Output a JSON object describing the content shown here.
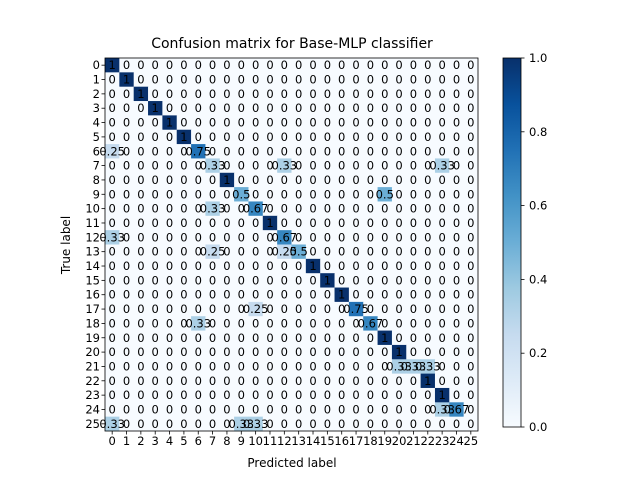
{
  "chart_data": {
    "type": "heatmap",
    "title": "Confusion matrix for Base-MLP classifier",
    "xlabel": "Predicted label",
    "ylabel": "True label",
    "labels": [
      "0",
      "1",
      "2",
      "3",
      "4",
      "5",
      "6",
      "7",
      "8",
      "9",
      "10",
      "11",
      "12",
      "13",
      "14",
      "15",
      "16",
      "17",
      "18",
      "19",
      "20",
      "21",
      "22",
      "23",
      "24",
      "25"
    ],
    "cells": [
      {
        "r": 0,
        "c": 0,
        "v": 1,
        "label": "1"
      },
      {
        "r": 1,
        "c": 1,
        "v": 1,
        "label": "1"
      },
      {
        "r": 2,
        "c": 2,
        "v": 1,
        "label": "1"
      },
      {
        "r": 3,
        "c": 3,
        "v": 1,
        "label": "1"
      },
      {
        "r": 4,
        "c": 4,
        "v": 1,
        "label": "1"
      },
      {
        "r": 5,
        "c": 5,
        "v": 1,
        "label": "1"
      },
      {
        "r": 6,
        "c": 0,
        "v": 0.25,
        "label": "0.25"
      },
      {
        "r": 6,
        "c": 6,
        "v": 0.75,
        "label": "0.75"
      },
      {
        "r": 7,
        "c": 7,
        "v": 0.33,
        "label": "0.33"
      },
      {
        "r": 7,
        "c": 12,
        "v": 0.33,
        "label": "0.33"
      },
      {
        "r": 7,
        "c": 23,
        "v": 0.33,
        "label": "0.33"
      },
      {
        "r": 8,
        "c": 8,
        "v": 1,
        "label": "1"
      },
      {
        "r": 9,
        "c": 9,
        "v": 0.5,
        "label": "0.5"
      },
      {
        "r": 9,
        "c": 19,
        "v": 0.5,
        "label": "0.5"
      },
      {
        "r": 10,
        "c": 7,
        "v": 0.33,
        "label": "0.33"
      },
      {
        "r": 10,
        "c": 10,
        "v": 0.67,
        "label": "0.67"
      },
      {
        "r": 11,
        "c": 11,
        "v": 1,
        "label": "1"
      },
      {
        "r": 12,
        "c": 0,
        "v": 0.33,
        "label": "0.33"
      },
      {
        "r": 12,
        "c": 12,
        "v": 0.67,
        "label": "0.67"
      },
      {
        "r": 13,
        "c": 7,
        "v": 0.25,
        "label": "0.25"
      },
      {
        "r": 13,
        "c": 12,
        "v": 0.25,
        "label": "0.25"
      },
      {
        "r": 13,
        "c": 13,
        "v": 0.5,
        "label": "0.5"
      },
      {
        "r": 14,
        "c": 14,
        "v": 1,
        "label": "1"
      },
      {
        "r": 15,
        "c": 15,
        "v": 1,
        "label": "1"
      },
      {
        "r": 16,
        "c": 16,
        "v": 1,
        "label": "1"
      },
      {
        "r": 17,
        "c": 10,
        "v": 0.25,
        "label": "0.25"
      },
      {
        "r": 17,
        "c": 17,
        "v": 0.75,
        "label": "0.75"
      },
      {
        "r": 18,
        "c": 6,
        "v": 0.33,
        "label": "0.33"
      },
      {
        "r": 18,
        "c": 18,
        "v": 0.67,
        "label": "0.67"
      },
      {
        "r": 19,
        "c": 19,
        "v": 1,
        "label": "1"
      },
      {
        "r": 20,
        "c": 20,
        "v": 1,
        "label": "1"
      },
      {
        "r": 21,
        "c": 20,
        "v": 0.33,
        "label": "0.33"
      },
      {
        "r": 21,
        "c": 21,
        "v": 0.33,
        "label": "0.33"
      },
      {
        "r": 21,
        "c": 22,
        "v": 0.33,
        "label": "0.33"
      },
      {
        "r": 22,
        "c": 22,
        "v": 1,
        "label": "1"
      },
      {
        "r": 23,
        "c": 23,
        "v": 1,
        "label": "1"
      },
      {
        "r": 24,
        "c": 23,
        "v": 0.33,
        "label": "0.33"
      },
      {
        "r": 24,
        "c": 24,
        "v": 0.67,
        "label": "0.67"
      },
      {
        "r": 25,
        "c": 0,
        "v": 0.33,
        "label": "0.33"
      },
      {
        "r": 25,
        "c": 9,
        "v": 0.33,
        "label": "0.33"
      },
      {
        "r": 25,
        "c": 10,
        "v": 0.33,
        "label": "0.33"
      }
    ],
    "zero_label": "0",
    "colormap": "Blues",
    "colorbar": {
      "range": [
        0.0,
        1.0
      ],
      "ticks": [
        "0.0",
        "0.2",
        "0.4",
        "0.6",
        "0.8",
        "1.0"
      ]
    },
    "colors": {
      "low": "#f7fbff",
      "high": "#08306b"
    }
  }
}
